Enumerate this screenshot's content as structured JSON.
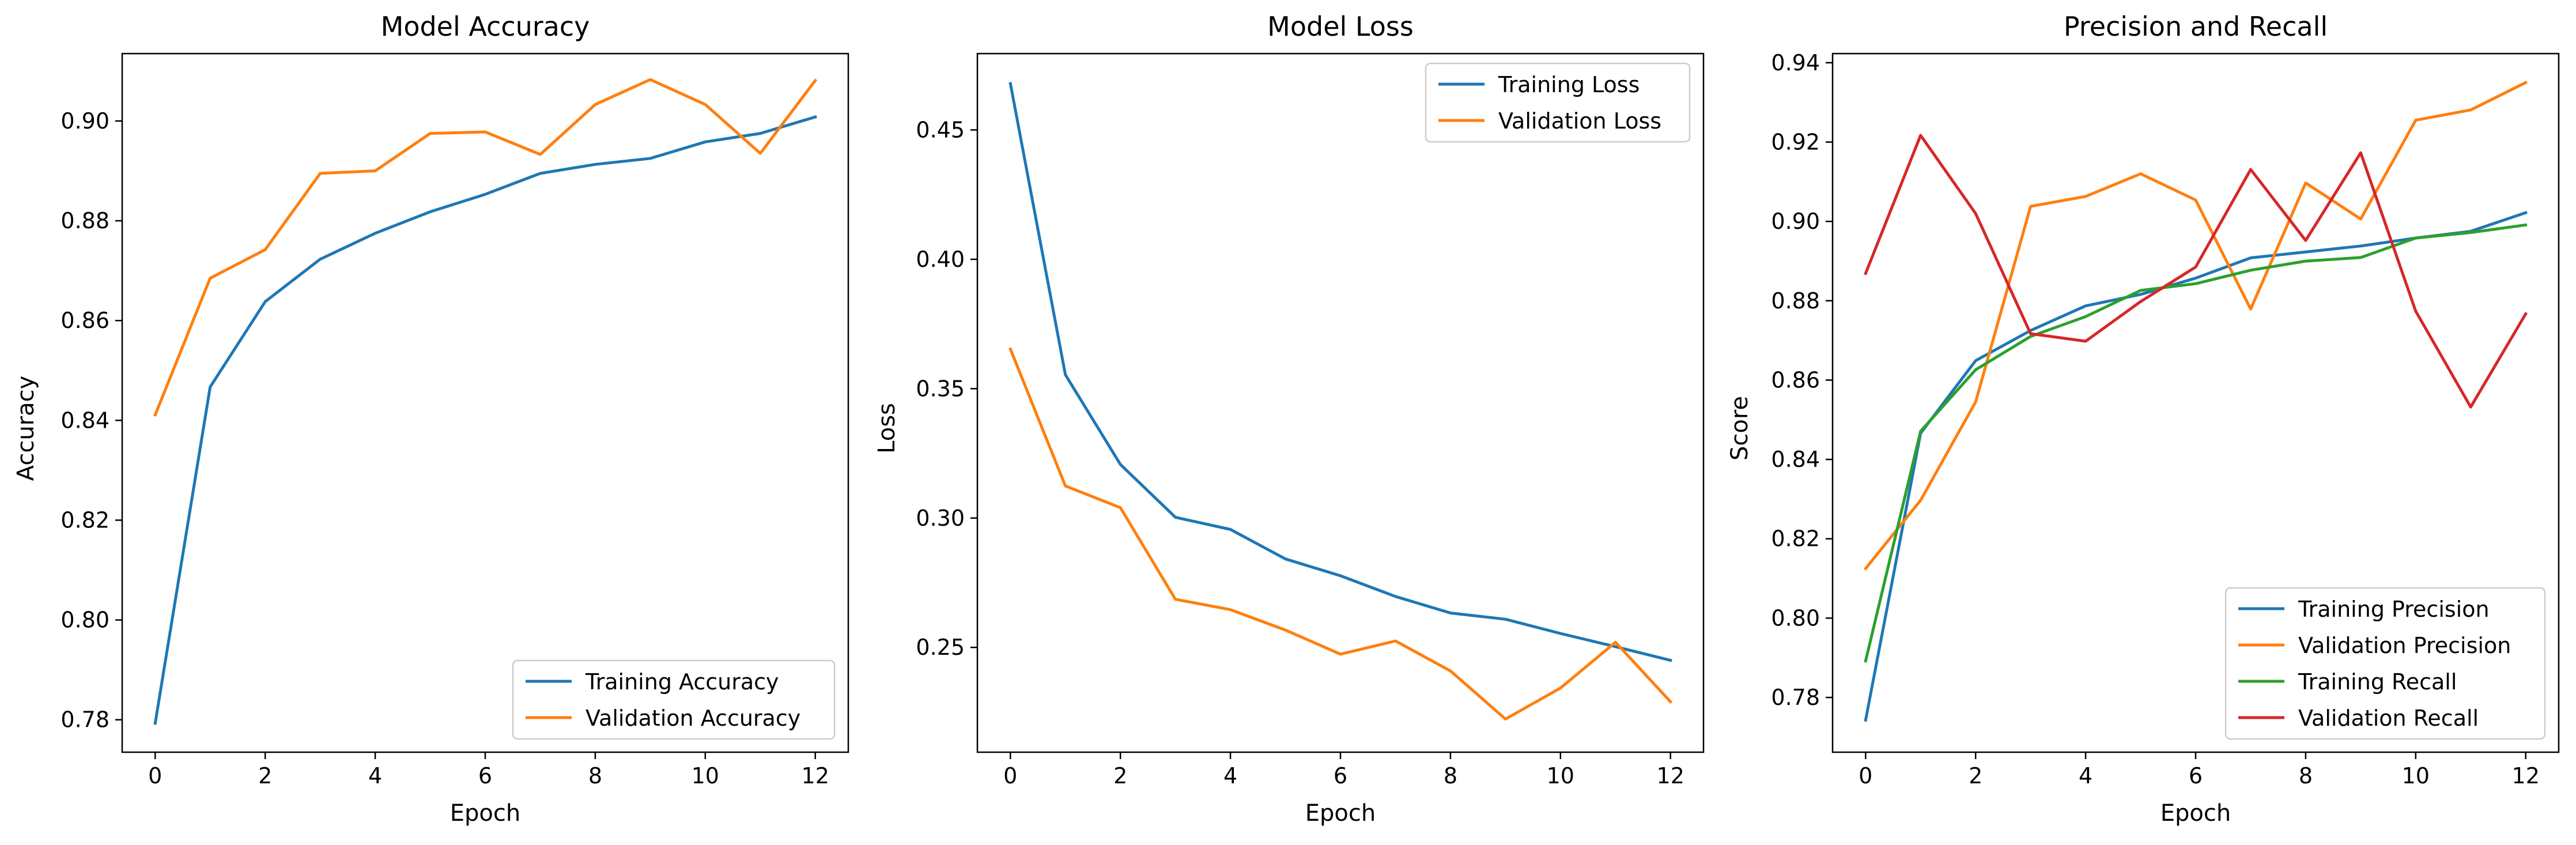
{
  "colors": {
    "blue": "#1f77b4",
    "orange": "#ff7f0e",
    "green": "#2ca02c",
    "red": "#d62728",
    "axis": "#000000",
    "legend_border": "#cccccc"
  },
  "chart_data": [
    {
      "type": "line",
      "title": "Model Accuracy",
      "xlabel": "Epoch",
      "ylabel": "Accuracy",
      "x": [
        0,
        1,
        2,
        3,
        4,
        5,
        6,
        7,
        8,
        9,
        10,
        11,
        12
      ],
      "xlim": [
        -0.6,
        12.6
      ],
      "ylim": [
        0.7735,
        0.9135
      ],
      "xticks": [
        "0",
        "2",
        "4",
        "6",
        "8",
        "10",
        "12"
      ],
      "yticks": [
        "0.78",
        "0.80",
        "0.82",
        "0.84",
        "0.86",
        "0.88",
        "0.90"
      ],
      "grid": false,
      "legend_position": "lower-right",
      "series": [
        {
          "name": "Training Accuracy",
          "color": "#1f77b4",
          "values": [
            0.7793,
            0.8467,
            0.8638,
            0.8723,
            0.8775,
            0.8818,
            0.8853,
            0.8895,
            0.8913,
            0.8925,
            0.8958,
            0.8975,
            0.9008
          ]
        },
        {
          "name": "Validation Accuracy",
          "color": "#ff7f0e",
          "values": [
            0.8411,
            0.8685,
            0.8742,
            0.8895,
            0.89,
            0.8975,
            0.8978,
            0.8933,
            0.9033,
            0.9083,
            0.9033,
            0.8935,
            0.9081
          ]
        }
      ]
    },
    {
      "type": "line",
      "title": "Model Loss",
      "xlabel": "Epoch",
      "ylabel": "Loss",
      "x": [
        0,
        1,
        2,
        3,
        4,
        5,
        6,
        7,
        8,
        9,
        10,
        11,
        12
      ],
      "xlim": [
        -0.6,
        12.6
      ],
      "ylim": [
        0.2095,
        0.4795
      ],
      "xticks": [
        "0",
        "2",
        "4",
        "6",
        "8",
        "10",
        "12"
      ],
      "yticks": [
        "0.25",
        "0.30",
        "0.35",
        "0.40",
        "0.45"
      ],
      "grid": false,
      "legend_position": "upper-right",
      "series": [
        {
          "name": "Training Loss",
          "color": "#1f77b4",
          "values": [
            0.4679,
            0.3554,
            0.3207,
            0.3003,
            0.2956,
            0.2842,
            0.2777,
            0.2697,
            0.2633,
            0.2609,
            0.2554,
            0.2503,
            0.245
          ]
        },
        {
          "name": "Validation Loss",
          "color": "#ff7f0e",
          "values": [
            0.3653,
            0.3124,
            0.304,
            0.2686,
            0.2646,
            0.2567,
            0.2474,
            0.2525,
            0.2409,
            0.2223,
            0.2343,
            0.252,
            0.229
          ]
        }
      ]
    },
    {
      "type": "line",
      "title": "Precision and Recall",
      "xlabel": "Epoch",
      "ylabel": "Score",
      "x": [
        0,
        1,
        2,
        3,
        4,
        5,
        6,
        7,
        8,
        9,
        10,
        11,
        12
      ],
      "xlim": [
        -0.6,
        12.6
      ],
      "ylim": [
        0.7662,
        0.9423
      ],
      "xticks": [
        "0",
        "2",
        "4",
        "6",
        "8",
        "10",
        "12"
      ],
      "yticks": [
        "0.78",
        "0.80",
        "0.82",
        "0.84",
        "0.86",
        "0.88",
        "0.90",
        "0.92",
        "0.94"
      ],
      "grid": false,
      "legend_position": "lower-right",
      "series": [
        {
          "name": "Training Precision",
          "color": "#1f77b4",
          "values": [
            0.7743,
            0.8466,
            0.8649,
            0.8725,
            0.8787,
            0.8816,
            0.8857,
            0.8908,
            0.8923,
            0.8938,
            0.8958,
            0.8975,
            0.9022
          ]
        },
        {
          "name": "Validation Precision",
          "color": "#ff7f0e",
          "values": [
            0.8125,
            0.8297,
            0.8545,
            0.9038,
            0.9063,
            0.912,
            0.9054,
            0.8779,
            0.9097,
            0.9006,
            0.9255,
            0.9281,
            0.935
          ]
        },
        {
          "name": "Training Recall",
          "color": "#2ca02c",
          "values": [
            0.7892,
            0.8471,
            0.8626,
            0.871,
            0.876,
            0.8826,
            0.8843,
            0.8877,
            0.89,
            0.8909,
            0.8958,
            0.8972,
            0.8991
          ]
        },
        {
          "name": "Validation Recall",
          "color": "#d62728",
          "values": [
            0.8869,
            0.9217,
            0.902,
            0.8717,
            0.8698,
            0.8798,
            0.8885,
            0.9131,
            0.8952,
            0.9173,
            0.8774,
            0.8532,
            0.8767
          ]
        }
      ]
    }
  ]
}
